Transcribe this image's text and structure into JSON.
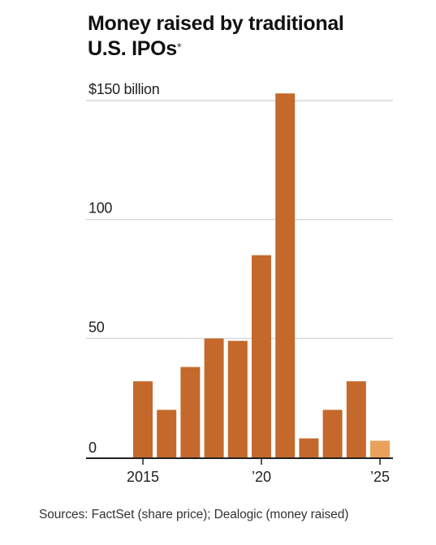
{
  "title": {
    "line1": "Money raised by traditional",
    "line2": "U.S. IPOs",
    "footnote_mark": "*"
  },
  "source": "Sources: FactSet (share price); Dealogic (money raised)",
  "colors": {
    "bar": "#c4692b",
    "bar_partial": "#e9a15c",
    "grid": "#cfcfcf",
    "axis": "#222222"
  },
  "chart_data": {
    "type": "bar",
    "x": [
      2015,
      2016,
      2017,
      2018,
      2019,
      2020,
      2021,
      2022,
      2023,
      2024,
      2025
    ],
    "values": [
      32,
      20,
      38,
      50,
      49,
      85,
      153,
      8,
      20,
      32,
      7
    ],
    "partial_year": 2025,
    "ylim": [
      0,
      150
    ],
    "yticks": [
      {
        "value": 0,
        "label": "0"
      },
      {
        "value": 50,
        "label": "50"
      },
      {
        "value": 100,
        "label": "100"
      },
      {
        "value": 150,
        "label": "$150 billion"
      }
    ],
    "xticks": [
      {
        "value": 2015,
        "label": "2015"
      },
      {
        "value": 2020,
        "label": "’20"
      },
      {
        "value": 2025,
        "label": "’25"
      }
    ],
    "grid": true,
    "xlabel": "",
    "ylabel": ""
  }
}
